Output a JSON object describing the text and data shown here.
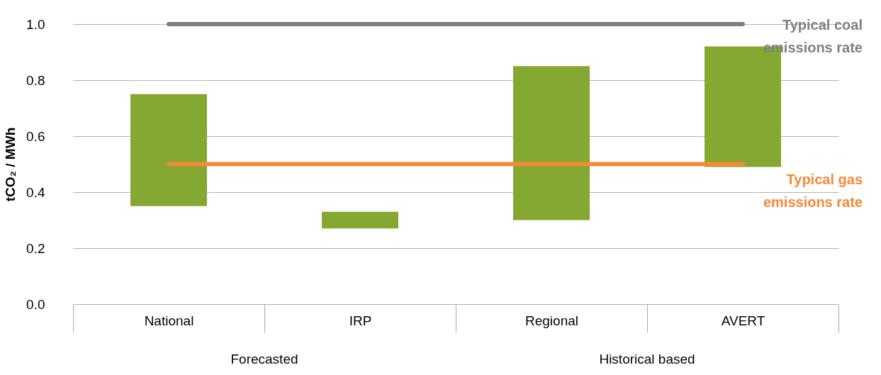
{
  "chart_data": {
    "type": "bar",
    "ylabel": "tCO₂ / MWh",
    "categories": [
      "National",
      "IRP",
      "Regional",
      "AVERT"
    ],
    "base": [
      0.35,
      0.27,
      0.3,
      0.49
    ],
    "values": [
      0.4,
      0.06,
      0.55,
      0.43
    ],
    "color": "#84a832",
    "ylim": [
      0,
      1
    ],
    "yticks": [
      {
        "value": 0,
        "label": "0.0"
      },
      0.2,
      0.4,
      0.6,
      0.8,
      {
        "value": 1,
        "label": "1.0"
      }
    ],
    "grid": "y",
    "ref_lines": [
      {
        "axis": "y",
        "value": 1,
        "label": "Typical coal emissions rate",
        "color": "#7f7f7f"
      },
      {
        "axis": "y",
        "value": 0.5,
        "label": "Typical gas emissions rate",
        "color": "#f58a37"
      }
    ],
    "annotations": [
      "Forecasted",
      "Historical based"
    ]
  }
}
